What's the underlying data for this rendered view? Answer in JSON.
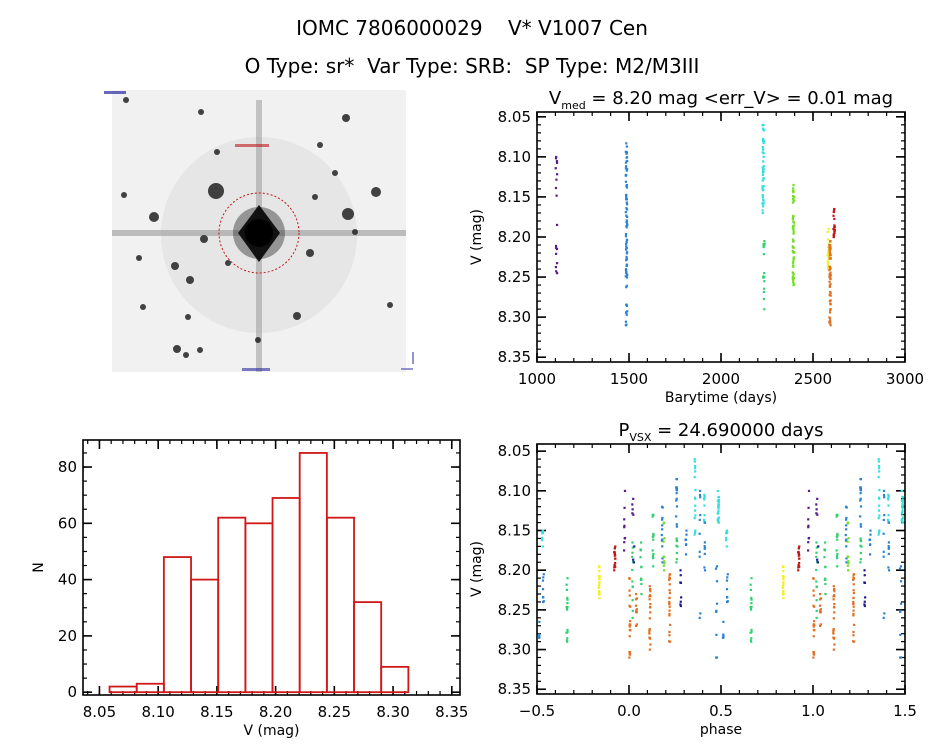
{
  "header": {
    "title_line1": "IOMC 7806000029    V* V1007 Cen",
    "title_line2": "O Type: sr*  Var Type: SRB:  SP Type: M2/M3III"
  },
  "colors": {
    "purple": "#5a1a8c",
    "navy": "#1c1c96",
    "blue": "#2a82d2",
    "cyan": "#34e0dc",
    "green": "#32d070",
    "lime": "#72e024",
    "yellow": "#f2f020",
    "orange": "#e07022",
    "red": "#c41818",
    "hist": "#d01818"
  },
  "chart_data": [
    {
      "id": "lightcurve",
      "type": "scatter",
      "title_main": "V",
      "title_sub": "med",
      "title_rest": " = 8.20 mag <err_V> = 0.01 mag",
      "xlabel": "Barytime (days)",
      "ylabel": "V (mag)",
      "xlim": [
        1000,
        3000
      ],
      "ylim": [
        8.044,
        8.356
      ],
      "y_inverted": true,
      "xticks": [
        1000,
        1500,
        2000,
        2500,
        3000
      ],
      "xtick_labels": [
        "1000",
        "1500",
        "2000",
        "2500",
        "3000"
      ],
      "xminor": 100,
      "yticks": [
        8.05,
        8.1,
        8.15,
        8.2,
        8.25,
        8.3,
        8.35
      ],
      "ytick_labels": [
        "8.05",
        "8.10",
        "8.15",
        "8.20",
        "8.25",
        "8.30",
        "8.35"
      ],
      "yminor": 0.01,
      "clusters": [
        {
          "x": 1105,
          "ymin": 8.1,
          "ymax": 8.245,
          "color": "purple",
          "n": 18
        },
        {
          "x": 1486,
          "ymin": 8.083,
          "ymax": 8.31,
          "color": "blue",
          "n": 80
        },
        {
          "x": 2229,
          "ymin": 8.06,
          "ymax": 8.17,
          "color": "cyan",
          "n": 45
        },
        {
          "x": 2233,
          "ymin": 8.205,
          "ymax": 8.29,
          "color": "green",
          "n": 16
        },
        {
          "x": 2393,
          "ymin": 8.135,
          "ymax": 8.26,
          "color": "lime",
          "n": 55
        },
        {
          "x": 2583,
          "ymin": 8.19,
          "ymax": 8.24,
          "color": "yellow",
          "n": 20
        },
        {
          "x": 2592,
          "ymin": 8.205,
          "ymax": 8.31,
          "color": "orange",
          "n": 60
        },
        {
          "x": 2614,
          "ymin": 8.165,
          "ymax": 8.2,
          "color": "red",
          "n": 20
        }
      ]
    },
    {
      "id": "histogram",
      "type": "bar",
      "xlabel": "V (mag)",
      "ylabel": "N",
      "xlim": [
        8.036,
        8.357
      ],
      "ylim": [
        -1,
        89.6
      ],
      "xticks": [
        8.05,
        8.1,
        8.15,
        8.2,
        8.25,
        8.3,
        8.35
      ],
      "xtick_labels": [
        "8.05",
        "8.10",
        "8.15",
        "8.20",
        "8.25",
        "8.30",
        "8.35"
      ],
      "xminor": 0.01,
      "yticks": [
        0,
        20,
        40,
        60,
        80
      ],
      "ytick_labels": [
        "0",
        "20",
        "40",
        "60",
        "80"
      ],
      "yminor": 5,
      "bin_start": 8.0586,
      "bin_width": 0.02313,
      "values": [
        2,
        3,
        48,
        40,
        62,
        60,
        69,
        85,
        62,
        32,
        9
      ]
    },
    {
      "id": "phased",
      "type": "scatter",
      "title_main": "P",
      "title_sub": "VSX",
      "title_rest": " = 24.690000 days",
      "xlabel": "phase",
      "ylabel": "V (mag)",
      "xlim": [
        -0.5,
        1.5
      ],
      "ylim": [
        8.041,
        8.356
      ],
      "y_inverted": true,
      "xticks": [
        -0.5,
        0.0,
        0.5,
        1.0,
        1.5
      ],
      "xtick_labels": [
        "−0.5",
        "0.0",
        "0.5",
        "1.0",
        "1.5"
      ],
      "xminor": 0.1,
      "yticks": [
        8.05,
        8.1,
        8.15,
        8.2,
        8.25,
        8.3,
        8.35
      ],
      "ytick_labels": [
        "8.05",
        "8.10",
        "8.15",
        "8.20",
        "8.25",
        "8.30",
        "8.35"
      ],
      "yminor": 0.01,
      "period_days": 24.69,
      "clusters": [
        {
          "x": 0.004,
          "ymin": 8.21,
          "ymax": 8.31,
          "color": "orange",
          "n": 20
        },
        {
          "x": 0.02,
          "ymin": 8.165,
          "ymax": 8.26,
          "color": "green",
          "n": 12
        },
        {
          "x": 0.04,
          "ymin": 8.23,
          "ymax": 8.27,
          "color": "orange",
          "n": 10
        },
        {
          "x": 0.065,
          "ymin": 8.165,
          "ymax": 8.23,
          "color": "green",
          "n": 12
        },
        {
          "x": 0.113,
          "ymin": 8.22,
          "ymax": 8.3,
          "color": "orange",
          "n": 22
        },
        {
          "x": 0.13,
          "ymin": 8.13,
          "ymax": 8.195,
          "color": "green",
          "n": 14
        },
        {
          "x": 0.18,
          "ymin": 8.12,
          "ymax": 8.19,
          "color": "blue",
          "n": 12
        },
        {
          "x": 0.19,
          "ymin": 8.14,
          "ymax": 8.2,
          "color": "lime",
          "n": 10
        },
        {
          "x": 0.22,
          "ymin": 8.205,
          "ymax": 8.29,
          "color": "orange",
          "n": 22
        },
        {
          "x": 0.258,
          "ymin": 8.085,
          "ymax": 8.145,
          "color": "blue",
          "n": 14
        },
        {
          "x": 0.26,
          "ymin": 8.16,
          "ymax": 8.19,
          "color": "green",
          "n": 8
        },
        {
          "x": 0.28,
          "ymin": 8.2,
          "ymax": 8.245,
          "color": "navy",
          "n": 8
        },
        {
          "x": 0.31,
          "ymin": 8.15,
          "ymax": 8.18,
          "color": "blue",
          "n": 8
        },
        {
          "x": 0.358,
          "ymin": 8.06,
          "ymax": 8.155,
          "color": "cyan",
          "n": 16
        },
        {
          "x": 0.385,
          "ymin": 8.1,
          "ymax": 8.26,
          "color": "blue",
          "n": 10
        },
        {
          "x": 0.41,
          "ymin": 8.105,
          "ymax": 8.14,
          "color": "cyan",
          "n": 10
        },
        {
          "x": 0.41,
          "ymin": 8.14,
          "ymax": 8.2,
          "color": "blue",
          "n": 8
        },
        {
          "x": 0.475,
          "ymin": 8.195,
          "ymax": 8.31,
          "color": "blue",
          "n": 10
        },
        {
          "x": 0.485,
          "ymin": 8.1,
          "ymax": 8.14,
          "color": "cyan",
          "n": 22
        },
        {
          "x": 0.51,
          "ymin": 8.265,
          "ymax": 8.285,
          "color": "blue",
          "n": 5
        },
        {
          "x": 0.53,
          "ymin": 8.15,
          "ymax": 8.17,
          "color": "cyan",
          "n": 8
        },
        {
          "x": 0.535,
          "ymin": 8.205,
          "ymax": 8.24,
          "color": "blue",
          "n": 8
        },
        {
          "x": 0.663,
          "ymin": 8.21,
          "ymax": 8.29,
          "color": "green",
          "n": 16
        },
        {
          "x": 0.837,
          "ymin": 8.195,
          "ymax": 8.235,
          "color": "yellow",
          "n": 20
        },
        {
          "x": 0.922,
          "ymin": 8.17,
          "ymax": 8.2,
          "color": "red",
          "n": 20
        },
        {
          "x": 0.975,
          "ymin": 8.1,
          "ymax": 8.175,
          "color": "purple",
          "n": 9
        },
        {
          "x": 1.02,
          "ymin": 8.11,
          "ymax": 8.13,
          "color": "purple",
          "n": 5
        },
        {
          "x": 1.025,
          "ymin": 8.17,
          "ymax": 8.19,
          "color": "navy",
          "n": 3
        }
      ]
    }
  ]
}
